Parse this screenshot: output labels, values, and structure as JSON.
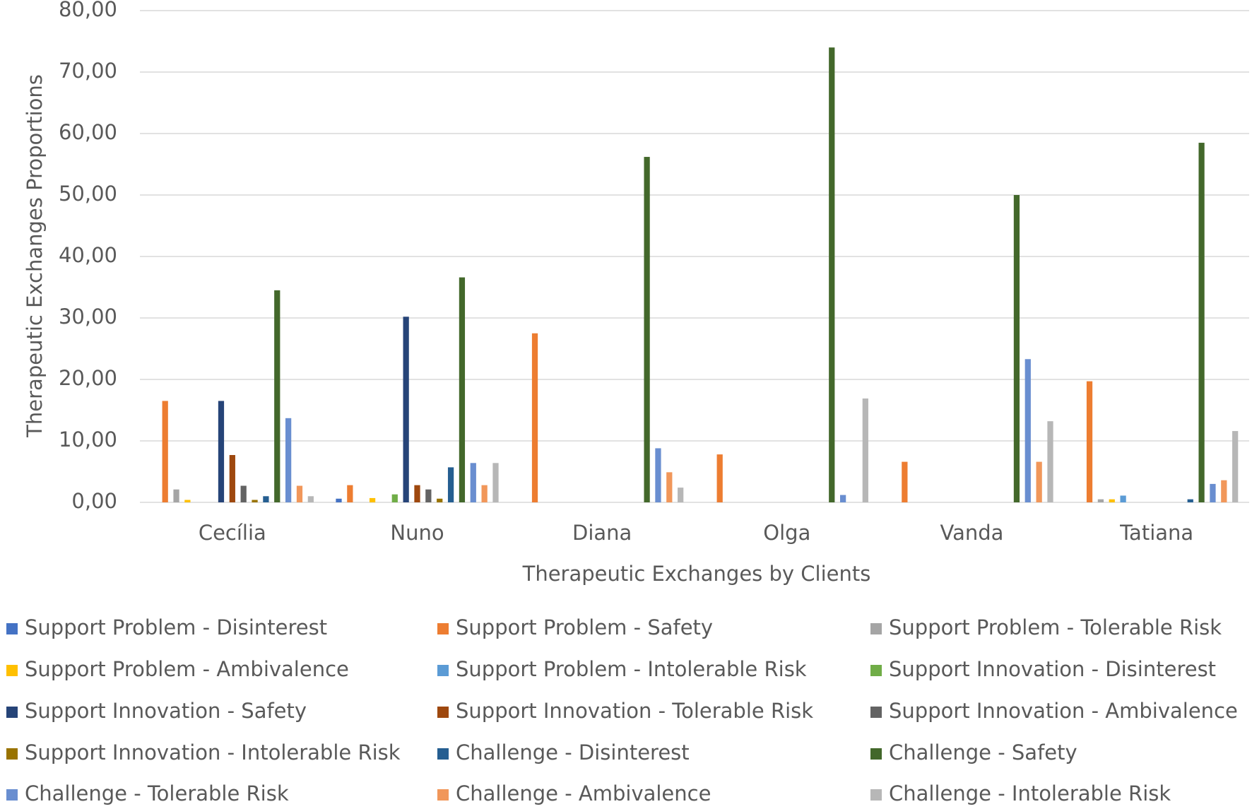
{
  "chart_data": {
    "type": "bar",
    "x_label": "Therapeutic Exchanges by Clients",
    "y_label": "Therapeutic Exchanges Proportions",
    "categories": [
      "Cecília",
      "Nuno",
      "Diana",
      "Olga",
      "Vanda",
      "Tatiana"
    ],
    "ylim": [
      0,
      80
    ],
    "yticks": [
      {
        "value": 0,
        "label": "0,00"
      },
      {
        "value": 10,
        "label": "10,00"
      },
      {
        "value": 20,
        "label": "20,00"
      },
      {
        "value": 30,
        "label": "30,00"
      },
      {
        "value": 40,
        "label": "40,00"
      },
      {
        "value": 50,
        "label": "50,00"
      },
      {
        "value": 60,
        "label": "60,00"
      },
      {
        "value": 70,
        "label": "70,00"
      },
      {
        "value": 80,
        "label": "80,00"
      }
    ],
    "grid": true,
    "legend": "bottom",
    "series": [
      {
        "name": "Support Problem - Disinterest",
        "color": "#4472c4",
        "values": [
          0,
          0.6,
          0,
          0,
          0,
          0
        ]
      },
      {
        "name": "Support Problem - Safety",
        "color": "#ed7d31",
        "values": [
          16.5,
          2.8,
          27.5,
          7.8,
          6.6,
          19.7
        ]
      },
      {
        "name": "Support Problem - Tolerable Risk",
        "color": "#a5a5a5",
        "values": [
          2.1,
          0,
          0,
          0,
          0,
          0.5
        ]
      },
      {
        "name": "Support Problem - Ambivalence",
        "color": "#ffc000",
        "values": [
          0.4,
          0.7,
          0,
          0,
          0,
          0.5
        ]
      },
      {
        "name": "Support Problem - Intolerable Risk",
        "color": "#5b9bd5",
        "values": [
          0,
          0,
          0,
          0,
          0,
          1.1
        ]
      },
      {
        "name": "Support Innovation - Disinterest",
        "color": "#70ad47",
        "values": [
          0,
          1.3,
          0,
          0,
          0,
          0
        ]
      },
      {
        "name": "Support Innovation - Safety",
        "color": "#264478",
        "values": [
          16.5,
          30.2,
          0,
          0,
          0,
          0
        ]
      },
      {
        "name": "Support Innovation - Tolerable Risk",
        "color": "#9e480e",
        "values": [
          7.7,
          2.8,
          0,
          0,
          0,
          0
        ]
      },
      {
        "name": "Support Innovation - Ambivalence",
        "color": "#636363",
        "values": [
          2.7,
          2.1,
          0,
          0,
          0,
          0
        ]
      },
      {
        "name": "Support Innovation - Intolerable Risk",
        "color": "#997300",
        "values": [
          0.4,
          0.6,
          0,
          0,
          0,
          0
        ]
      },
      {
        "name": "Challenge - Disinterest",
        "color": "#255e91",
        "values": [
          1.0,
          5.7,
          0,
          0,
          0,
          0.5
        ]
      },
      {
        "name": "Challenge - Safety",
        "color": "#43682b",
        "values": [
          34.5,
          36.6,
          56.2,
          74.0,
          50.0,
          58.5
        ]
      },
      {
        "name": "Challenge - Tolerable Risk",
        "color": "#698ed0",
        "values": [
          13.7,
          6.4,
          8.8,
          1.2,
          23.3,
          3.0
        ]
      },
      {
        "name": "Challenge - Ambivalence",
        "color": "#f1975a",
        "values": [
          2.7,
          2.8,
          4.9,
          0,
          6.6,
          3.6
        ]
      },
      {
        "name": "Challenge - Intolerable Risk",
        "color": "#b7b7b7",
        "values": [
          1.0,
          6.4,
          2.4,
          16.9,
          13.2,
          11.6
        ]
      }
    ]
  }
}
